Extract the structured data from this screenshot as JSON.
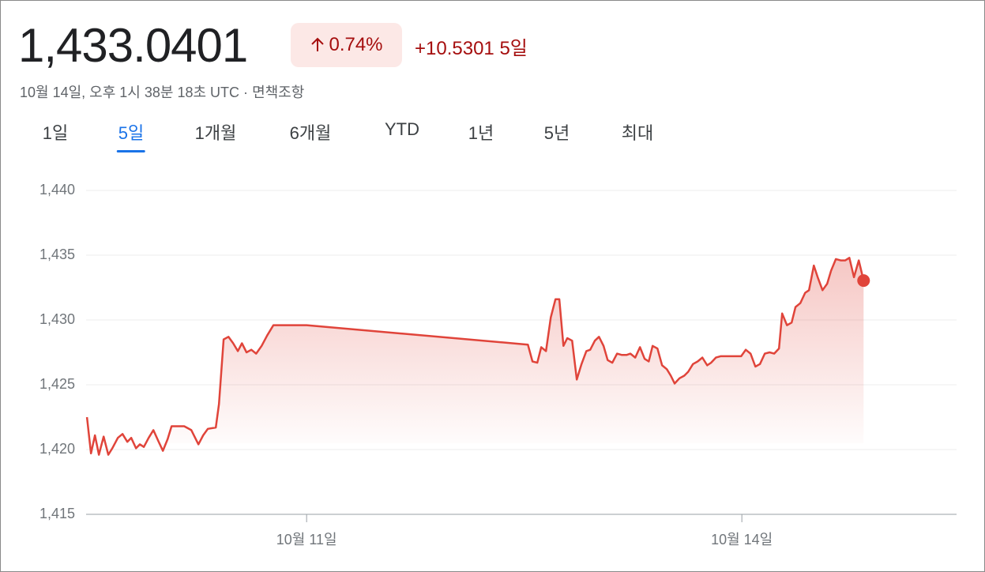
{
  "header": {
    "price": "1,433.0401",
    "change_percent": "0.74%",
    "change": "+10.5301",
    "period": "5일",
    "timestamp": "10월 14일, 오후 1시 38분 18초 UTC",
    "separator": "·",
    "disclaimer": "면책조항"
  },
  "tabs": {
    "items": [
      "1일",
      "5일",
      "1개월",
      "6개월",
      "YTD",
      "1년",
      "5년",
      "최대"
    ],
    "selected": 1
  },
  "chart_data": {
    "type": "line",
    "color": "#e0443a",
    "x": [
      9.486,
      9.514,
      9.541,
      9.568,
      9.601,
      9.633,
      9.661,
      9.699,
      9.731,
      9.764,
      9.791,
      9.824,
      9.851,
      9.878,
      9.911,
      9.944,
      9.976,
      10.009,
      10.042,
      10.069,
      10.112,
      10.156,
      10.205,
      10.254,
      10.287,
      10.319,
      10.374,
      10.396,
      10.428,
      10.461,
      10.494,
      10.526,
      10.554,
      10.586,
      10.619,
      10.652,
      10.69,
      10.728,
      10.771,
      11.0,
      12.525,
      12.557,
      12.59,
      12.617,
      12.65,
      12.683,
      12.715,
      12.742,
      12.77,
      12.797,
      12.83,
      12.862,
      12.895,
      12.928,
      12.955,
      12.987,
      13.015,
      13.047,
      13.075,
      13.107,
      13.14,
      13.173,
      13.205,
      13.232,
      13.265,
      13.298,
      13.33,
      13.358,
      13.385,
      13.418,
      13.45,
      13.483,
      13.51,
      13.537,
      13.57,
      13.603,
      13.63,
      13.663,
      13.695,
      13.728,
      13.761,
      13.788,
      13.821,
      13.853,
      13.886,
      13.929,
      13.995,
      14.027,
      14.06,
      14.093,
      14.125,
      14.158,
      14.191,
      14.223,
      14.256,
      14.278,
      14.311,
      14.343,
      14.37,
      14.403,
      14.436,
      14.463,
      14.496,
      14.523,
      14.556,
      14.588,
      14.615,
      14.648,
      14.681,
      14.713,
      14.741,
      14.773,
      14.806,
      14.839
    ],
    "values": [
      1422.5,
      1419.7,
      1421.1,
      1419.6,
      1421.0,
      1419.6,
      1420.1,
      1420.9,
      1421.2,
      1420.6,
      1420.9,
      1420.1,
      1420.4,
      1420.2,
      1420.9,
      1421.5,
      1420.7,
      1419.9,
      1420.8,
      1421.8,
      1421.8,
      1421.8,
      1421.5,
      1420.4,
      1421.1,
      1421.6,
      1421.7,
      1423.5,
      1428.5,
      1428.7,
      1428.2,
      1427.6,
      1428.2,
      1427.5,
      1427.7,
      1427.4,
      1428.0,
      1428.8,
      1429.6,
      1429.6,
      1428.1,
      1426.8,
      1426.7,
      1427.9,
      1427.6,
      1430.2,
      1431.6,
      1431.6,
      1428.0,
      1428.6,
      1428.4,
      1425.4,
      1426.6,
      1427.6,
      1427.7,
      1428.4,
      1428.7,
      1428.0,
      1426.9,
      1426.7,
      1427.4,
      1427.3,
      1427.3,
      1427.4,
      1427.1,
      1427.9,
      1427.0,
      1426.8,
      1428.0,
      1427.8,
      1426.5,
      1426.2,
      1425.7,
      1425.1,
      1425.5,
      1425.7,
      1426.0,
      1426.6,
      1426.8,
      1427.1,
      1426.5,
      1426.7,
      1427.1,
      1427.2,
      1427.2,
      1427.2,
      1427.2,
      1427.7,
      1427.4,
      1426.4,
      1426.6,
      1427.4,
      1427.5,
      1427.4,
      1427.8,
      1430.5,
      1429.6,
      1429.8,
      1431.0,
      1431.3,
      1432.1,
      1432.3,
      1434.2,
      1433.3,
      1432.3,
      1432.8,
      1433.8,
      1434.7,
      1434.6,
      1434.6,
      1434.8,
      1433.3,
      1434.6,
      1433.04
    ],
    "xlim": [
      9.48,
      15.48
    ],
    "xticks": [
      {
        "value": 11,
        "label": "10월 11일"
      },
      {
        "value": 14,
        "label": "10월 14일"
      }
    ],
    "ylim": [
      1415,
      1440
    ],
    "yticks": [
      {
        "value": 1415,
        "label": "1,415"
      },
      {
        "value": 1420,
        "label": "1,420"
      },
      {
        "value": 1425,
        "label": "1,425"
      },
      {
        "value": 1430,
        "label": "1,430"
      },
      {
        "value": 1435,
        "label": "1,435"
      },
      {
        "value": 1440,
        "label": "1,440"
      }
    ],
    "grid": true
  }
}
